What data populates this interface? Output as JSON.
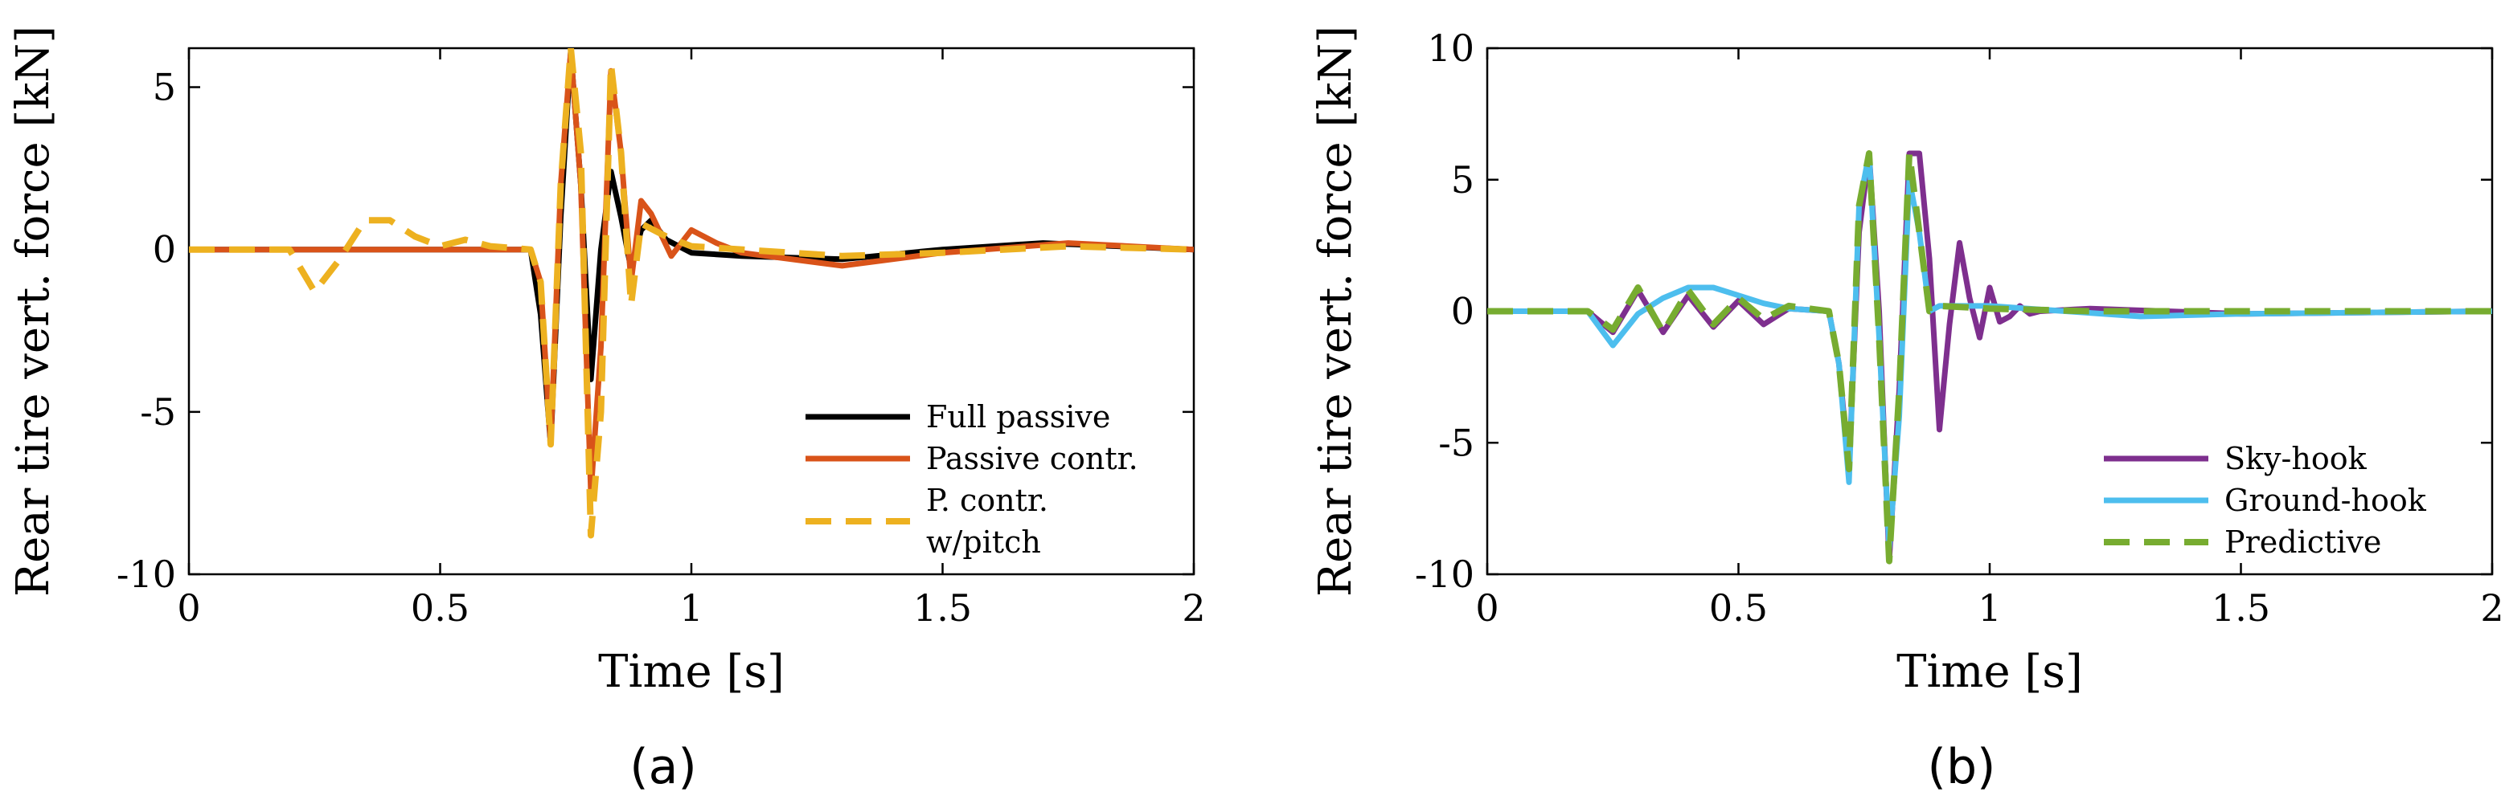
{
  "chart_data": [
    {
      "type": "line",
      "caption": "(a)",
      "xlabel": "Time [s]",
      "ylabel": "Rear tire vert. force [kN]",
      "xlim": [
        0,
        2
      ],
      "ylim": [
        -10,
        6.2
      ],
      "xticks": [
        0,
        0.5,
        1,
        1.5,
        2
      ],
      "xtick_labels": [
        "0",
        "0.5",
        "1",
        "1.5",
        "2"
      ],
      "yticks": [
        -10,
        -5,
        0,
        5
      ],
      "ytick_labels": [
        "-10",
        "-5",
        "0",
        "5"
      ],
      "legend_position": "lower-right",
      "series": [
        {
          "name": "Full passive",
          "color": "#000000",
          "dash": "solid",
          "x": [
            0,
            0.68,
            0.7,
            0.72,
            0.74,
            0.76,
            0.78,
            0.8,
            0.82,
            0.84,
            0.86,
            0.88,
            0.9,
            0.92,
            0.95,
            1.0,
            1.1,
            1.3,
            1.5,
            1.7,
            1.85,
            2.0
          ],
          "y": [
            0,
            0,
            -2,
            -6,
            1,
            6.1,
            2,
            -4,
            0,
            2.4,
            1,
            -0.6,
            0.6,
            0.9,
            0.3,
            -0.1,
            -0.2,
            -0.3,
            0,
            0.2,
            0.1,
            0
          ]
        },
        {
          "name": "Passive contr.",
          "color": "#D95319",
          "dash": "solid",
          "x": [
            0,
            0.68,
            0.7,
            0.72,
            0.74,
            0.76,
            0.78,
            0.8,
            0.82,
            0.84,
            0.86,
            0.88,
            0.9,
            0.92,
            0.96,
            1.0,
            1.05,
            1.1,
            1.3,
            1.5,
            1.75,
            2.0
          ],
          "y": [
            0,
            0,
            -1,
            -6,
            2,
            6.1,
            2,
            -7.5,
            -3,
            5.5,
            3,
            -1,
            1.5,
            1.1,
            -0.2,
            0.6,
            0.2,
            -0.1,
            -0.5,
            -0.1,
            0.2,
            0
          ]
        },
        {
          "name": "P. contr.\nw/pitch",
          "color": "#EDB120",
          "dash": "dashed",
          "x": [
            0,
            0.15,
            0.2,
            0.25,
            0.3,
            0.35,
            0.4,
            0.45,
            0.5,
            0.55,
            0.6,
            0.68,
            0.7,
            0.72,
            0.74,
            0.76,
            0.78,
            0.8,
            0.82,
            0.84,
            0.86,
            0.88,
            0.9,
            0.95,
            1.0,
            1.3,
            1.5,
            1.75,
            2.0
          ],
          "y": [
            0,
            0,
            0,
            -1.3,
            -0.3,
            0.9,
            0.9,
            0.4,
            0.1,
            0.3,
            0.1,
            0,
            -1,
            -6,
            2,
            6.2,
            3,
            -8.8,
            -5,
            5.7,
            3,
            -1.7,
            0.8,
            0.4,
            0.1,
            -0.2,
            -0.1,
            0.1,
            0
          ]
        }
      ]
    },
    {
      "type": "line",
      "caption": "(b)",
      "xlabel": "Time [s]",
      "ylabel": "Rear tire vert. force [kN]",
      "xlim": [
        0,
        2
      ],
      "ylim": [
        -10,
        10
      ],
      "xticks": [
        0,
        0.5,
        1,
        1.5,
        2
      ],
      "xtick_labels": [
        "0",
        "0.5",
        "1",
        "1.5",
        "2"
      ],
      "yticks": [
        -10,
        -5,
        0,
        5,
        10
      ],
      "ytick_labels": [
        "-10",
        "-5",
        "0",
        "5",
        "10"
      ],
      "legend_position": "lower-right",
      "series": [
        {
          "name": "Sky-hook",
          "color": "#7E2F8E",
          "dash": "solid",
          "x": [
            0,
            0.2,
            0.25,
            0.3,
            0.35,
            0.4,
            0.45,
            0.5,
            0.55,
            0.6,
            0.68,
            0.7,
            0.72,
            0.74,
            0.76,
            0.78,
            0.8,
            0.82,
            0.84,
            0.86,
            0.88,
            0.9,
            0.92,
            0.94,
            0.96,
            0.98,
            1.0,
            1.02,
            1.04,
            1.06,
            1.08,
            1.1,
            1.2,
            1.5,
            2.0
          ],
          "y": [
            0,
            0,
            -0.8,
            0.8,
            -0.8,
            0.6,
            -0.6,
            0.4,
            -0.5,
            0.1,
            0,
            -2,
            -6,
            3,
            6,
            0,
            -9.5,
            -3,
            6,
            6,
            2,
            -4.5,
            -0.5,
            2.6,
            0.5,
            -1,
            0.9,
            -0.4,
            -0.2,
            0.2,
            -0.1,
            0,
            0.1,
            -0.1,
            0
          ]
        },
        {
          "name": "Ground-hook",
          "color": "#4DBEEE",
          "dash": "solid",
          "x": [
            0,
            0.2,
            0.25,
            0.3,
            0.35,
            0.4,
            0.45,
            0.5,
            0.55,
            0.6,
            0.68,
            0.7,
            0.72,
            0.74,
            0.76,
            0.78,
            0.8,
            0.82,
            0.84,
            0.86,
            0.88,
            0.9,
            1.0,
            1.3,
            1.5,
            2.0
          ],
          "y": [
            0,
            0,
            -1.3,
            -0.1,
            0.5,
            0.9,
            0.9,
            0.6,
            0.3,
            0.1,
            0,
            -2,
            -6.5,
            4,
            6,
            -1,
            -9,
            -4,
            5,
            3,
            0,
            0.2,
            0.2,
            -0.2,
            -0.1,
            0
          ]
        },
        {
          "name": "Predictive",
          "color": "#77AC30",
          "dash": "dashed",
          "x": [
            0,
            0.2,
            0.25,
            0.3,
            0.35,
            0.4,
            0.45,
            0.5,
            0.55,
            0.6,
            0.68,
            0.7,
            0.72,
            0.74,
            0.76,
            0.78,
            0.8,
            0.82,
            0.84,
            0.86,
            0.88,
            0.9,
            1.0,
            1.2,
            1.5,
            2.0
          ],
          "y": [
            0,
            0,
            -0.7,
            0.9,
            -0.8,
            0.8,
            -0.5,
            0.5,
            -0.3,
            0.2,
            0,
            -2,
            -6,
            4,
            6,
            -1,
            -9.5,
            -3,
            6,
            3,
            0,
            0.2,
            0.1,
            0,
            0,
            0
          ]
        }
      ]
    }
  ]
}
